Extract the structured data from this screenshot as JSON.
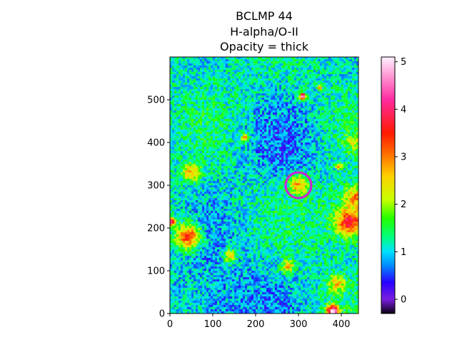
{
  "chart_data": {
    "type": "heatmap",
    "title_lines": [
      "BCLMP 44",
      "H-alpha/O-II",
      "Opacity = thick"
    ],
    "xlim": [
      0,
      440
    ],
    "ylim": [
      0,
      600
    ],
    "x_ticks": [
      0,
      100,
      200,
      300,
      400
    ],
    "y_ticks": [
      0,
      100,
      200,
      300,
      400,
      500
    ],
    "colormap": "gist_ncar-like rainbow",
    "colorbar": {
      "range": [
        -0.3,
        5.1
      ],
      "ticks": [
        0,
        1,
        2,
        3,
        4,
        5
      ],
      "stops": [
        {
          "v": -0.3,
          "color": "#0b0012"
        },
        {
          "v": 0.0,
          "color": "#7a1fe0"
        },
        {
          "v": 0.35,
          "color": "#2a00ff"
        },
        {
          "v": 0.7,
          "color": "#0088ff"
        },
        {
          "v": 1.0,
          "color": "#00e0ff"
        },
        {
          "v": 1.3,
          "color": "#00ff80"
        },
        {
          "v": 1.7,
          "color": "#22ff00"
        },
        {
          "v": 2.1,
          "color": "#c8ff00"
        },
        {
          "v": 2.6,
          "color": "#ffd000"
        },
        {
          "v": 3.0,
          "color": "#ff7a00"
        },
        {
          "v": 3.5,
          "color": "#ff1a00"
        },
        {
          "v": 4.2,
          "color": "#ff2aa0"
        },
        {
          "v": 5.1,
          "color": "#fff0ff"
        }
      ]
    },
    "features": [
      {
        "x": 42,
        "y": 180,
        "r": 28,
        "v": 3.4
      },
      {
        "x": 300,
        "y": 300,
        "r": 22,
        "v": 2.8
      },
      {
        "x": 420,
        "y": 215,
        "r": 30,
        "v": 3.8
      },
      {
        "x": 435,
        "y": 270,
        "r": 25,
        "v": 3.0
      },
      {
        "x": 380,
        "y": 5,
        "r": 14,
        "v": 5.1
      },
      {
        "x": 2,
        "y": 215,
        "r": 10,
        "v": 4.5
      },
      {
        "x": 310,
        "y": 508,
        "r": 8,
        "v": 4.6
      },
      {
        "x": 350,
        "y": 528,
        "r": 5,
        "v": 3.0
      },
      {
        "x": 50,
        "y": 330,
        "r": 20,
        "v": 2.8
      },
      {
        "x": 140,
        "y": 135,
        "r": 16,
        "v": 2.4
      },
      {
        "x": 175,
        "y": 410,
        "r": 9,
        "v": 2.8
      },
      {
        "x": 390,
        "y": 70,
        "r": 20,
        "v": 2.6
      },
      {
        "x": 275,
        "y": 110,
        "r": 14,
        "v": 2.7
      },
      {
        "x": 395,
        "y": 345,
        "r": 7,
        "v": 3.0
      },
      {
        "x": 430,
        "y": 400,
        "r": 20,
        "v": 2.2
      }
    ],
    "marker": {
      "type": "circle",
      "x": 300,
      "y": 300,
      "r": 30,
      "color": "#d020d0"
    }
  }
}
